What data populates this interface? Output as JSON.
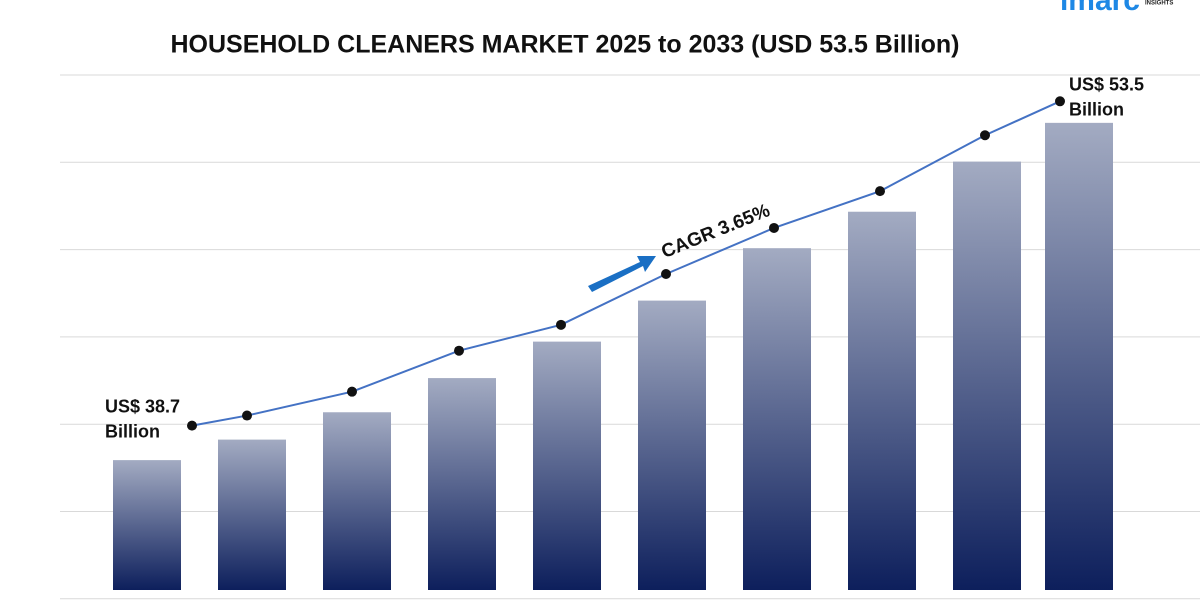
{
  "brand": {
    "logo": "imarc",
    "tagline": "INSIGHTS"
  },
  "chart_data": {
    "type": "bar",
    "title": "HOUSEHOLD CLEANERS MARKET 2025 to 2033 (USD 53.5 Billion)",
    "annotation": "CAGR 3.65%",
    "categories": [
      null,
      null,
      null,
      null,
      null,
      null,
      null,
      null,
      null,
      null
    ],
    "ylim": [
      33,
      55.6
    ],
    "y2lim": [
      31.2,
      54.7
    ],
    "grid": true,
    "series": [
      {
        "type": "bar",
        "color": "#0d1f5c",
        "values": [
          38.7,
          39.6,
          40.8,
          42.3,
          43.9,
          45.7,
          48.0,
          49.6,
          51.8,
          53.5
        ]
      },
      {
        "type": "line",
        "axis": "y2",
        "color": "#4472c4",
        "values": [
          38.7,
          39.16,
          40.25,
          42.12,
          43.3,
          45.62,
          47.72,
          49.4,
          51.95,
          53.5
        ],
        "value_labels": [
          "US$ 38.7 Billion",
          null,
          null,
          null,
          null,
          null,
          null,
          null,
          null,
          "US$ 53.5 Billion"
        ]
      }
    ]
  }
}
